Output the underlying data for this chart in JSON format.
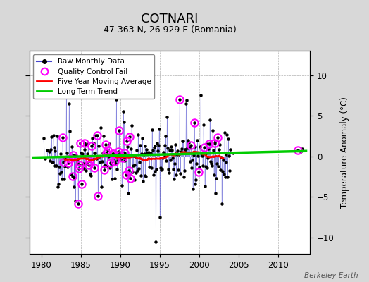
{
  "title": "COTNARI",
  "subtitle": "47.363 N, 26.929 E (Romania)",
  "ylabel_right": "Temperature Anomaly (°C)",
  "watermark": "Berkeley Earth",
  "xlim": [
    1978.5,
    2014
  ],
  "ylim": [
    -12,
    13
  ],
  "yticks": [
    -10,
    -5,
    0,
    5,
    10
  ],
  "xticks": [
    1980,
    1985,
    1990,
    1995,
    2000,
    2005,
    2010
  ],
  "bg_color": "#d8d8d8",
  "plot_bg_color": "#ffffff",
  "raw_line_color": "#4444cc",
  "raw_dot_color": "#000000",
  "qc_fail_color": "#ff00ff",
  "moving_avg_color": "#ff0000",
  "trend_color": "#00cc00",
  "seed": 42,
  "trend_x": [
    1979,
    2013.5
  ],
  "trend_y": [
    -0.15,
    0.65
  ],
  "title_fontsize": 13,
  "subtitle_fontsize": 9
}
